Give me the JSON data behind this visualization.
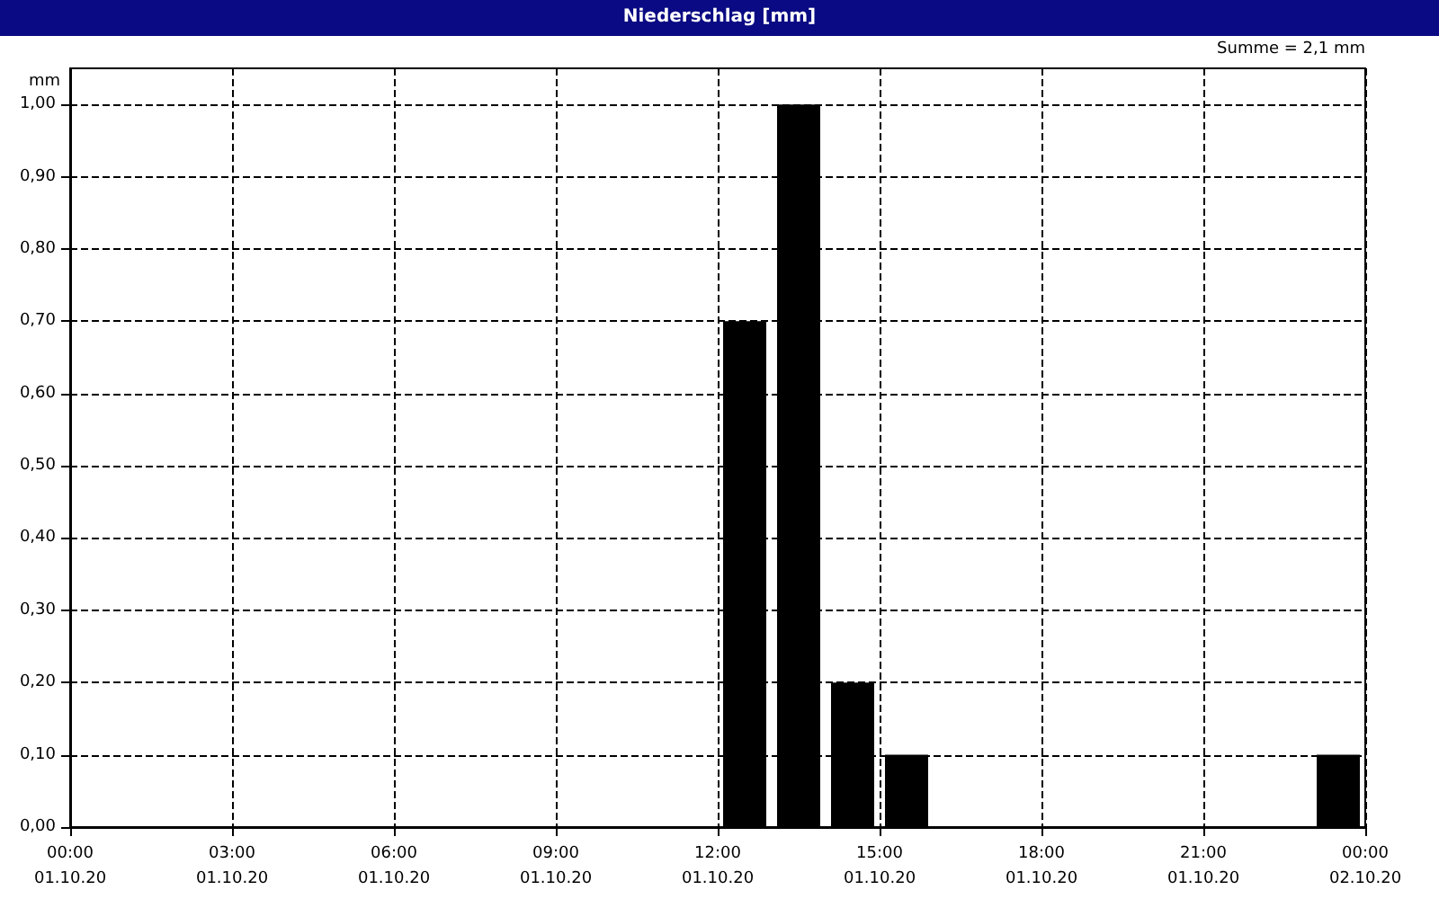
{
  "chart_data": {
    "type": "bar",
    "title": "Niederschlag [mm]",
    "ylabel": "mm",
    "annotations": [
      "Summe = 2,1 mm"
    ],
    "x": [
      "--10-01T12:30",
      "--10-01T13:30",
      "--10-01T14:30",
      "--10-01T15:30",
      "--10-01T23:30"
    ],
    "series": [
      {
        "color": "#000000",
        "values": [
          0.7,
          1.0,
          0.2,
          0.1,
          0.1
        ]
      }
    ],
    "xlim": [
      "--10-01T00:00",
      "--10-02T00:00"
    ],
    "xticks": [
      {
        "value": "--10-01T00:00",
        "label": "00:00\n01.10.20"
      },
      {
        "value": "--10-01T03:00",
        "label": "03:00\n01.10.20"
      },
      {
        "value": "--10-01T06:00",
        "label": "06:00\n01.10.20"
      },
      {
        "value": "--10-01T09:00",
        "label": "09:00\n01.10.20"
      },
      {
        "value": "--10-01T12:00",
        "label": "12:00\n01.10.20"
      },
      {
        "value": "--10-01T15:00",
        "label": "15:00\n01.10.20"
      },
      {
        "value": "--10-01T18:00",
        "label": "18:00\n01.10.20"
      },
      {
        "value": "--10-01T21:00",
        "label": "21:00\n01.10.20"
      },
      {
        "value": "--10-02T00:00",
        "label": "00:00\n02.10.20"
      }
    ],
    "ylim": [
      0,
      1.05
    ],
    "yticks": [
      {
        "value": 0,
        "label": "0,00"
      },
      {
        "value": 0.1,
        "label": "0,10"
      },
      {
        "value": 0.2,
        "label": "0,20"
      },
      {
        "value": 0.3,
        "label": "0,30"
      },
      {
        "value": 0.4,
        "label": "0,40"
      },
      {
        "value": 0.5,
        "label": "0,50"
      },
      {
        "value": 0.6,
        "label": "0,60"
      },
      {
        "value": 0.7,
        "label": "0,70"
      },
      {
        "value": 0.8,
        "label": "0,80"
      },
      {
        "value": 0.9,
        "label": "0,90"
      },
      {
        "value": 1.0,
        "label": "1,00"
      }
    ],
    "grid": true,
    "line_style": "dashed"
  }
}
